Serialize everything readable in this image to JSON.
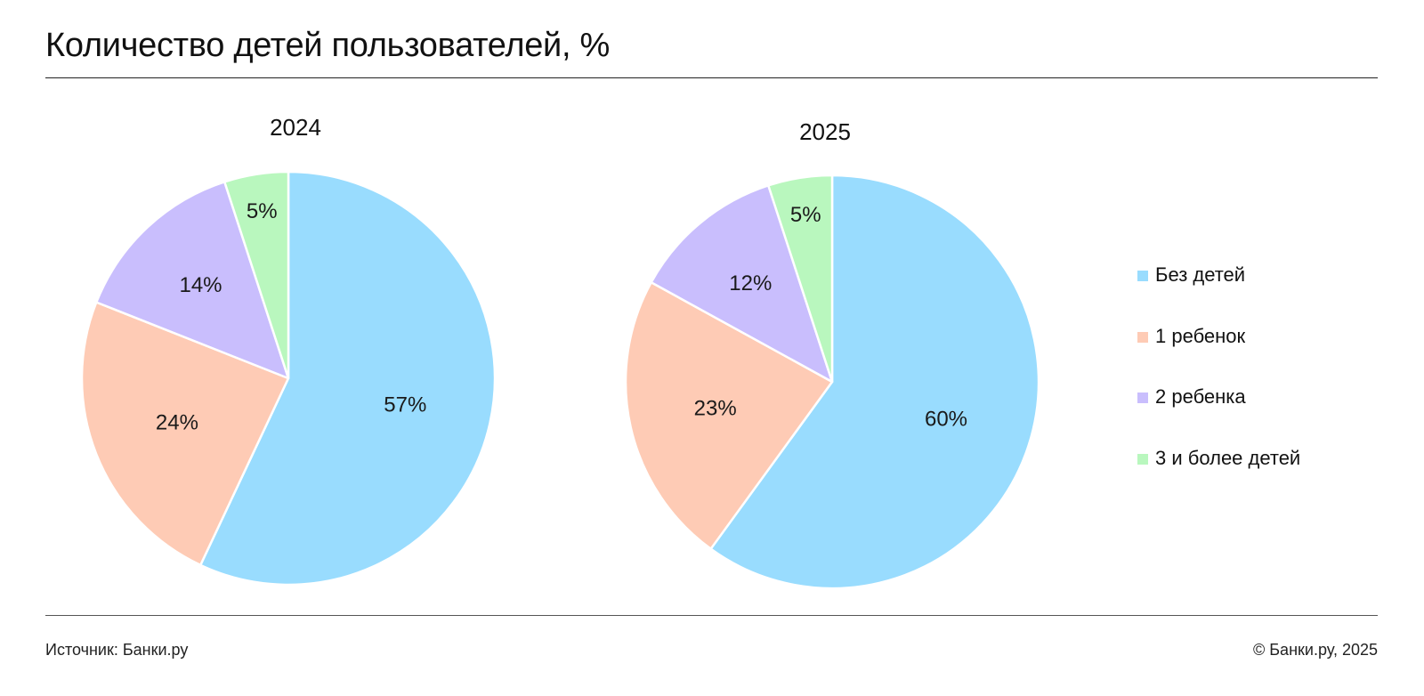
{
  "header": {
    "title": "Количество детей пользователей, %"
  },
  "footer": {
    "source": "Источник: Банки.ру",
    "copyright": "© Банки.ру, 2025"
  },
  "legend": {
    "items": [
      {
        "label": "Без детей",
        "color": "#99DCFE"
      },
      {
        "label": "1 ребенок",
        "color": "#FECBB5"
      },
      {
        "label": "2 ребенка",
        "color": "#C9BEFD"
      },
      {
        "label": "3 и более детей",
        "color": "#B9F7BE"
      }
    ]
  },
  "chart_data": [
    {
      "type": "pie",
      "title": "2024",
      "categories": [
        "Без детей",
        "1 ребенок",
        "2 ребенка",
        "3 и более детей"
      ],
      "values": [
        57,
        24,
        14,
        5
      ],
      "labels": [
        "57%",
        "24%",
        "14%",
        "5%"
      ],
      "colors": [
        "#99DCFE",
        "#FECBB5",
        "#C9BEFD",
        "#B9F7BE"
      ],
      "start": "12 o'clock",
      "direction": "clockwise"
    },
    {
      "type": "pie",
      "title": "2025",
      "categories": [
        "Без детей",
        "1 ребенок",
        "2 ребенка",
        "3 и более детей"
      ],
      "values": [
        60,
        23,
        12,
        5
      ],
      "labels": [
        "60%",
        "23%",
        "12%",
        "5%"
      ],
      "colors": [
        "#99DCFE",
        "#FECBB5",
        "#C9BEFD",
        "#B9F7BE"
      ],
      "start": "12 o'clock",
      "direction": "clockwise"
    }
  ]
}
